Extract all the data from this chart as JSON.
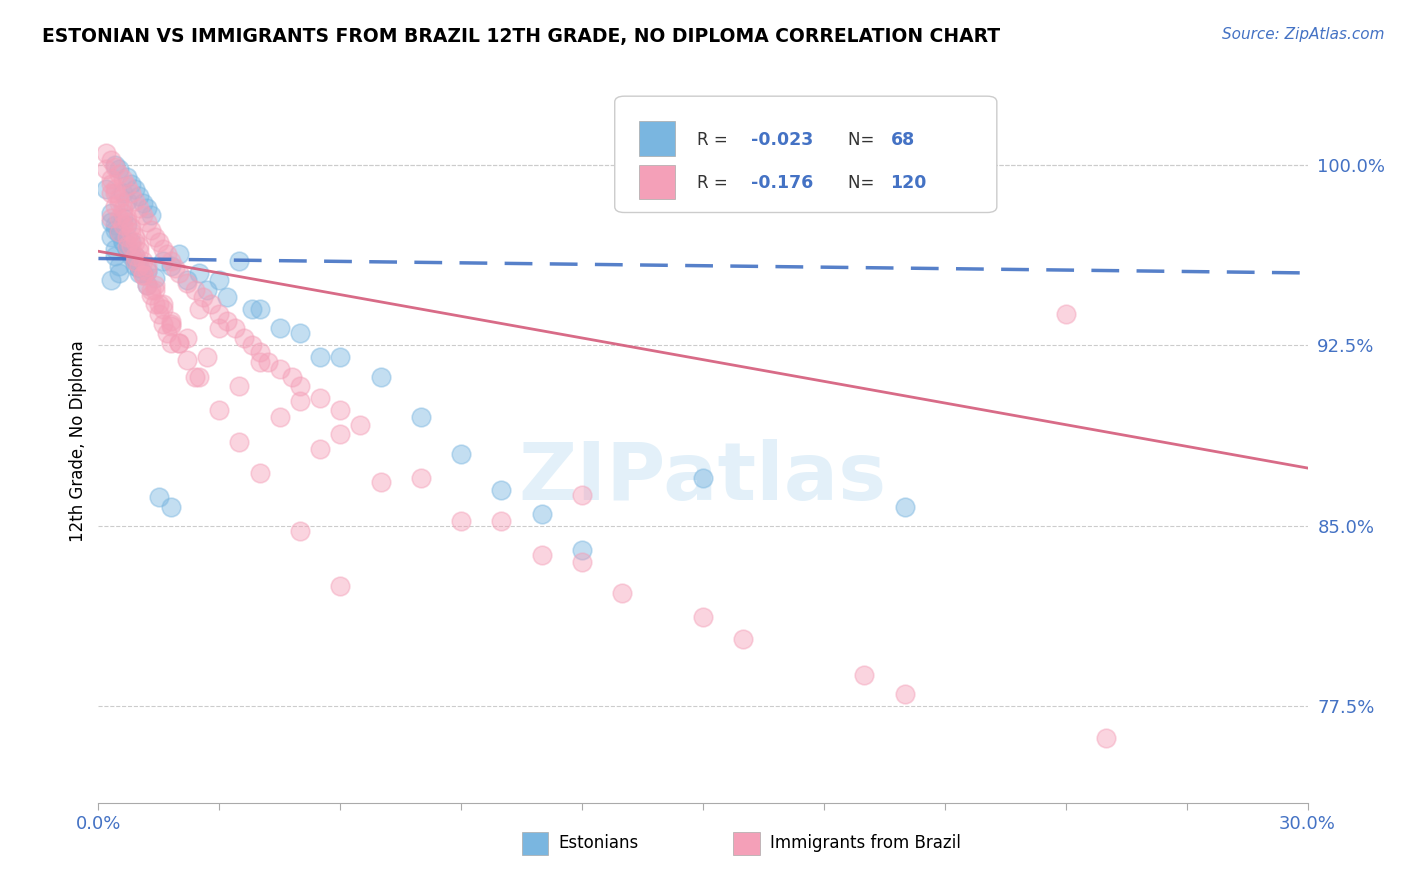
{
  "title": "ESTONIAN VS IMMIGRANTS FROM BRAZIL 12TH GRADE, NO DIPLOMA CORRELATION CHART",
  "source": "Source: ZipAtlas.com",
  "ylabel": "12th Grade, No Diploma",
  "xlim": [
    0.0,
    0.3
  ],
  "ylim": [
    0.735,
    1.035
  ],
  "yticks": [
    0.775,
    0.85,
    0.925,
    1.0
  ],
  "ytick_labels": [
    "77.5%",
    "85.0%",
    "92.5%",
    "100.0%"
  ],
  "xticks": [
    0.0,
    0.03,
    0.06,
    0.09,
    0.12,
    0.15,
    0.18,
    0.21,
    0.24,
    0.27,
    0.3
  ],
  "color_estonian": "#7ab6e0",
  "color_brazil": "#f4a0b8",
  "color_line_estonian": "#4472c4",
  "color_line_brazil": "#d45b7a",
  "color_axis_text": "#4472c4",
  "color_grid": "#cccccc",
  "watermark": "ZIPatlas",
  "est_line_x": [
    0.0,
    0.3
  ],
  "est_line_y": [
    0.961,
    0.955
  ],
  "bra_line_x": [
    0.0,
    0.3
  ],
  "bra_line_y": [
    0.964,
    0.874
  ],
  "estonian_x": [
    0.004,
    0.005,
    0.007,
    0.008,
    0.009,
    0.01,
    0.011,
    0.012,
    0.013,
    0.003,
    0.004,
    0.005,
    0.006,
    0.007,
    0.008,
    0.009,
    0.01,
    0.011,
    0.003,
    0.004,
    0.005,
    0.006,
    0.007,
    0.003,
    0.004,
    0.005,
    0.006,
    0.007,
    0.008,
    0.009,
    0.01,
    0.012,
    0.014,
    0.016,
    0.018,
    0.02,
    0.025,
    0.03,
    0.035,
    0.04,
    0.05,
    0.06,
    0.07,
    0.08,
    0.09,
    0.1,
    0.11,
    0.12,
    0.15,
    0.2,
    0.002,
    0.003,
    0.004,
    0.005,
    0.006,
    0.007,
    0.008,
    0.009,
    0.01,
    0.012,
    0.015,
    0.018,
    0.022,
    0.027,
    0.032,
    0.038,
    0.045,
    0.055
  ],
  "estonian_y": [
    1.0,
    0.998,
    0.995,
    0.992,
    0.99,
    0.987,
    0.984,
    0.982,
    0.979,
    0.976,
    0.973,
    0.971,
    0.968,
    0.965,
    0.963,
    0.96,
    0.957,
    0.955,
    0.952,
    0.965,
    0.958,
    0.978,
    0.985,
    0.97,
    0.962,
    0.955,
    0.988,
    0.975,
    0.968,
    0.962,
    0.958,
    0.956,
    0.953,
    0.96,
    0.958,
    0.963,
    0.955,
    0.952,
    0.96,
    0.94,
    0.93,
    0.92,
    0.912,
    0.895,
    0.88,
    0.865,
    0.855,
    0.84,
    0.87,
    0.858,
    0.99,
    0.98,
    0.975,
    0.972,
    0.968,
    0.965,
    0.962,
    0.958,
    0.955,
    0.95,
    0.862,
    0.858,
    0.952,
    0.948,
    0.945,
    0.94,
    0.932,
    0.92
  ],
  "brazil_x": [
    0.002,
    0.003,
    0.004,
    0.005,
    0.006,
    0.007,
    0.008,
    0.009,
    0.01,
    0.011,
    0.012,
    0.013,
    0.014,
    0.015,
    0.016,
    0.017,
    0.018,
    0.019,
    0.02,
    0.022,
    0.024,
    0.026,
    0.028,
    0.03,
    0.032,
    0.034,
    0.036,
    0.038,
    0.04,
    0.042,
    0.045,
    0.048,
    0.05,
    0.055,
    0.06,
    0.065,
    0.003,
    0.004,
    0.005,
    0.006,
    0.007,
    0.008,
    0.009,
    0.01,
    0.011,
    0.012,
    0.013,
    0.014,
    0.015,
    0.016,
    0.017,
    0.018,
    0.003,
    0.004,
    0.005,
    0.006,
    0.007,
    0.008,
    0.009,
    0.01,
    0.011,
    0.012,
    0.014,
    0.016,
    0.018,
    0.02,
    0.022,
    0.024,
    0.003,
    0.005,
    0.007,
    0.009,
    0.011,
    0.013,
    0.015,
    0.018,
    0.022,
    0.027,
    0.035,
    0.045,
    0.055,
    0.07,
    0.09,
    0.11,
    0.13,
    0.16,
    0.2,
    0.025,
    0.03,
    0.04,
    0.05,
    0.06,
    0.08,
    0.1,
    0.12,
    0.15,
    0.19,
    0.25,
    0.002,
    0.003,
    0.004,
    0.005,
    0.006,
    0.007,
    0.008,
    0.009,
    0.01,
    0.012,
    0.014,
    0.016,
    0.018,
    0.02,
    0.025,
    0.03,
    0.035,
    0.04,
    0.05,
    0.06,
    0.12,
    0.24
  ],
  "brazil_y": [
    1.005,
    1.002,
    0.999,
    0.996,
    0.994,
    0.991,
    0.988,
    0.985,
    0.982,
    0.979,
    0.976,
    0.973,
    0.97,
    0.968,
    0.965,
    0.963,
    0.96,
    0.957,
    0.955,
    0.951,
    0.948,
    0.945,
    0.942,
    0.938,
    0.935,
    0.932,
    0.928,
    0.925,
    0.922,
    0.918,
    0.915,
    0.912,
    0.908,
    0.903,
    0.898,
    0.892,
    0.988,
    0.983,
    0.978,
    0.975,
    0.97,
    0.966,
    0.962,
    0.958,
    0.954,
    0.95,
    0.946,
    0.942,
    0.938,
    0.934,
    0.93,
    0.926,
    0.992,
    0.988,
    0.984,
    0.98,
    0.976,
    0.972,
    0.968,
    0.964,
    0.96,
    0.956,
    0.948,
    0.94,
    0.933,
    0.926,
    0.919,
    0.912,
    0.978,
    0.972,
    0.966,
    0.96,
    0.954,
    0.948,
    0.942,
    0.935,
    0.928,
    0.92,
    0.908,
    0.895,
    0.882,
    0.868,
    0.852,
    0.838,
    0.822,
    0.803,
    0.78,
    0.94,
    0.932,
    0.918,
    0.902,
    0.888,
    0.87,
    0.852,
    0.835,
    0.812,
    0.788,
    0.762,
    0.998,
    0.994,
    0.99,
    0.986,
    0.982,
    0.978,
    0.974,
    0.97,
    0.966,
    0.958,
    0.95,
    0.942,
    0.934,
    0.926,
    0.912,
    0.898,
    0.885,
    0.872,
    0.848,
    0.825,
    0.863,
    0.938
  ]
}
